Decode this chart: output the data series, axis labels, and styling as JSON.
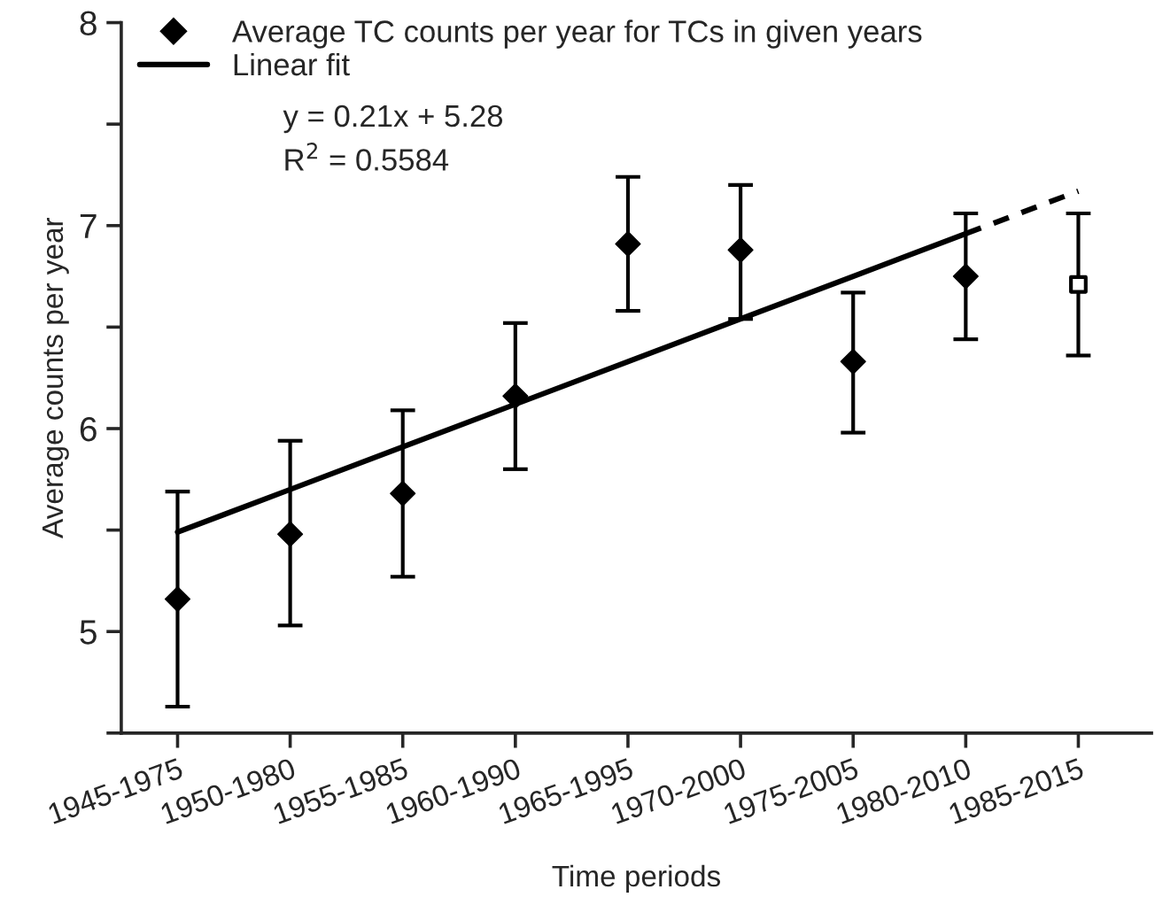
{
  "chart_data": {
    "type": "scatter",
    "xlabel": "Time periods",
    "ylabel": "Average counts per year",
    "categories": [
      "1945-1975",
      "1950-1980",
      "1955-1985",
      "1960-1990",
      "1965-1995",
      "1970-2000",
      "1975-2005",
      "1980-2010",
      "1985-2015"
    ],
    "series": [
      {
        "name": "Average TC counts per year for TCs in given years",
        "marker": "diamond",
        "color": "#000000",
        "values": [
          5.16,
          5.48,
          5.68,
          6.16,
          6.91,
          6.88,
          6.33,
          6.75,
          null
        ],
        "errors": [
          [
            4.63,
            5.69
          ],
          [
            5.03,
            5.94
          ],
          [
            5.27,
            6.09
          ],
          [
            5.8,
            6.52
          ],
          [
            6.58,
            7.24
          ],
          [
            6.54,
            7.2
          ],
          [
            5.98,
            6.67
          ],
          [
            6.44,
            7.06
          ],
          null
        ]
      },
      {
        "marker": "square",
        "color": "#000000",
        "values": [
          null,
          null,
          null,
          null,
          null,
          null,
          null,
          null,
          6.71
        ],
        "errors": [
          null,
          null,
          null,
          null,
          null,
          null,
          null,
          null,
          [
            6.36,
            7.06
          ]
        ]
      },
      {
        "name": "Linear fit",
        "type": "line",
        "line_style": "solid",
        "color": "#000000",
        "values": [
          5.49,
          5.7,
          5.91,
          6.12,
          6.33,
          6.54,
          6.75,
          6.96,
          null
        ]
      },
      {
        "type": "line",
        "line_style": "dashed",
        "color": "#000000",
        "values": [
          null,
          null,
          null,
          null,
          null,
          null,
          null,
          6.96,
          7.17
        ]
      }
    ],
    "annotations": [
      "y = 0.21x + 5.28",
      "R$^{2}$ = 0.5584"
    ],
    "ylim": [
      4.5,
      8
    ],
    "yticks": [
      {
        "value": 4.5,
        "label": null
      },
      5,
      {
        "value": 5.5,
        "label": null
      },
      6,
      {
        "value": 6.5,
        "label": null
      },
      7,
      {
        "value": 7.5,
        "label": null
      },
      8
    ],
    "legend": "top left",
    "grid": false
  }
}
